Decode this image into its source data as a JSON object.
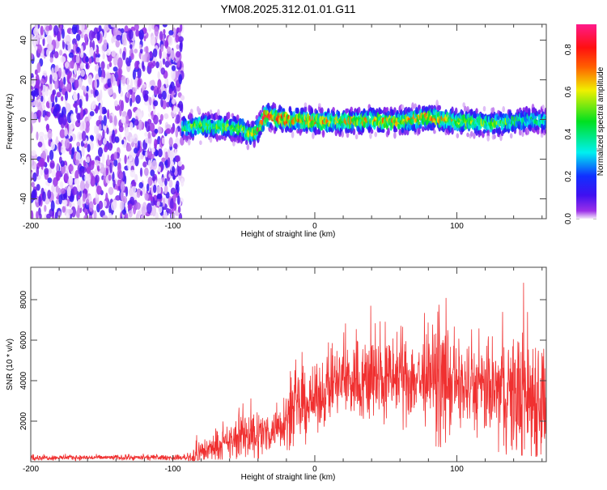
{
  "chart_data": [
    {
      "type": "heatmap",
      "title": "YM08.2025.312.01.01.G11",
      "xlabel": "Height of straight line (km)",
      "ylabel": "Frequency (Hz)",
      "xlim": [
        -200,
        163
      ],
      "ylim": [
        -50,
        48
      ],
      "xticks": [
        -200,
        -100,
        0,
        100
      ],
      "xtick_labels": [
        "-200",
        "-100",
        "0",
        "100"
      ],
      "yticks": [
        -40,
        -20,
        0,
        20,
        40
      ],
      "ytick_labels": [
        "-40",
        "-20",
        "0",
        "20",
        "40"
      ],
      "colorbar": {
        "label": "Normalized spectral amplitude",
        "range": [
          0,
          0.92
        ],
        "ticks": [
          0.0,
          0.2,
          0.4,
          0.6,
          0.8
        ],
        "tick_labels": [
          "0.0",
          "0.2",
          "0.4",
          "0.6",
          "0.8"
        ],
        "colormap": [
          "#f4e8fb",
          "#8a2be2",
          "#2020ff",
          "#00e0f0",
          "#00e040",
          "#e8f000",
          "#ff7000",
          "#ff1010",
          "#ff1a8a"
        ]
      },
      "noise_region_km": [
        -200,
        -93
      ],
      "ridge": {
        "height_km": [
          -93,
          -80,
          -60,
          -50,
          -45,
          -40,
          -35,
          -30,
          -20,
          -10,
          0,
          10,
          20,
          30,
          40,
          50,
          60,
          70,
          80,
          90,
          100,
          110,
          120,
          130,
          140,
          150,
          163
        ],
        "center_hz": [
          -4,
          -3,
          -4,
          -5,
          -8,
          -5,
          2,
          1,
          0,
          0,
          -1,
          -1,
          -1,
          -1,
          0,
          -1,
          -1,
          0,
          1,
          0,
          -1,
          -1,
          -2,
          -2,
          -1,
          0,
          -1
        ],
        "peak_amplitude": [
          0.5,
          0.55,
          0.55,
          0.6,
          0.6,
          0.8,
          0.9,
          0.85,
          0.8,
          0.75,
          0.8,
          0.7,
          0.7,
          0.75,
          0.7,
          0.7,
          0.7,
          0.75,
          0.85,
          0.7,
          0.65,
          0.6,
          0.55,
          0.55,
          0.5,
          0.45,
          0.4
        ]
      }
    },
    {
      "type": "line",
      "xlabel": "Height of straight line (km)",
      "ylabel": "SNR (10 * v/v)",
      "xlim": [
        -200,
        163
      ],
      "ylim": [
        0,
        9600
      ],
      "xticks": [
        -200,
        -100,
        0,
        100
      ],
      "xtick_labels": [
        "-200",
        "-100",
        "0",
        "100"
      ],
      "yticks": [
        2000,
        4000,
        6000,
        8000
      ],
      "ytick_labels": [
        "2000",
        "4000",
        "6000",
        "8000"
      ],
      "color": "#f03030",
      "x": [
        -200,
        -180,
        -160,
        -140,
        -120,
        -100,
        -90,
        -85,
        -80,
        -70,
        -60,
        -50,
        -40,
        -30,
        -20,
        -10,
        0,
        10,
        20,
        30,
        40,
        50,
        60,
        70,
        80,
        90,
        100,
        110,
        120,
        130,
        140,
        150,
        160
      ],
      "mean": [
        200,
        200,
        200,
        200,
        200,
        200,
        200,
        250,
        500,
        700,
        900,
        1400,
        1300,
        1500,
        2200,
        2700,
        3000,
        3700,
        4000,
        4000,
        4100,
        4000,
        4200,
        4100,
        4000,
        3900,
        3800,
        3600,
        3500,
        3400,
        3300,
        3300,
        3200
      ],
      "max": [
        400,
        400,
        400,
        400,
        400,
        400,
        400,
        1200,
        1600,
        1700,
        2300,
        3400,
        3500,
        2800,
        4500,
        5600,
        5300,
        6400,
        7000,
        7200,
        7800,
        7200,
        7600,
        7500,
        7300,
        8800,
        7000,
        7000,
        7000,
        7600,
        8000,
        9600,
        8000
      ],
      "min": [
        50,
        50,
        50,
        50,
        50,
        50,
        50,
        50,
        100,
        100,
        100,
        150,
        150,
        300,
        500,
        800,
        700,
        1000,
        1200,
        1000,
        1100,
        900,
        1000,
        900,
        800,
        700,
        700,
        500,
        500,
        400,
        300,
        300,
        200
      ]
    }
  ]
}
